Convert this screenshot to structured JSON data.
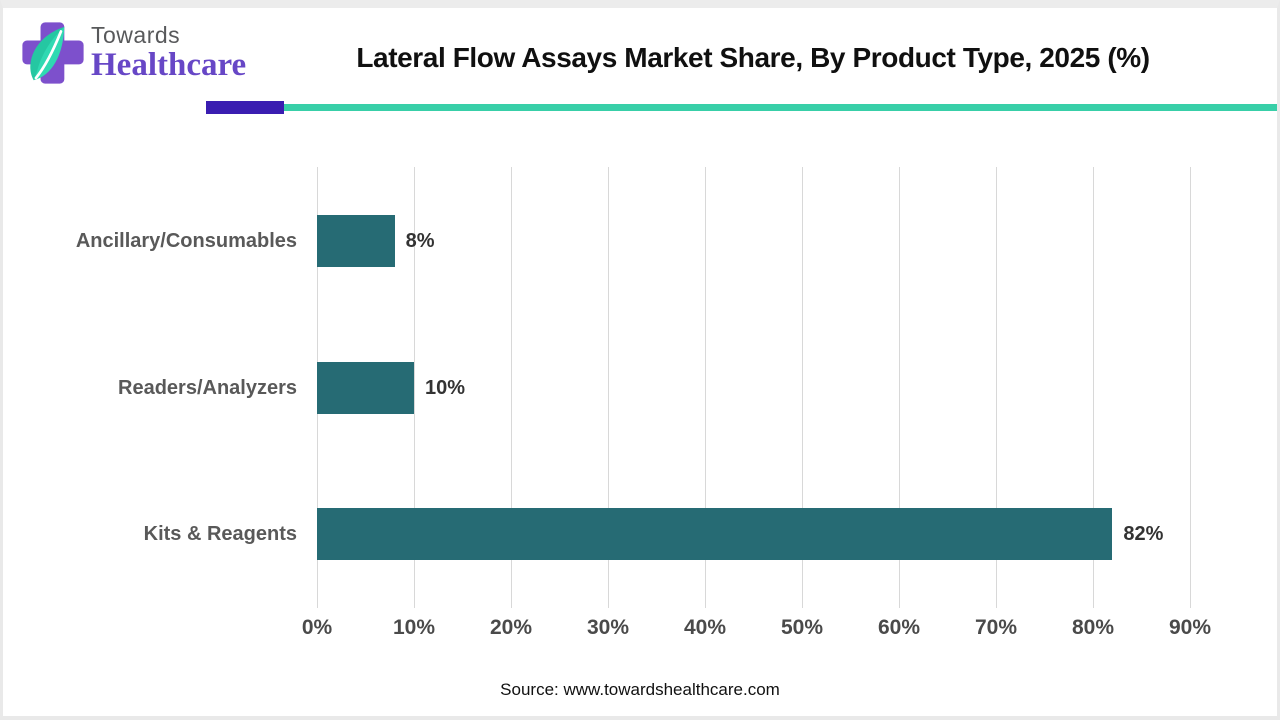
{
  "logo": {
    "line1": "Towards",
    "line2": "Healthcare",
    "cross_color": "#7d50cc",
    "leaf_color": "#2fd9b2",
    "leaf_dark_color": "#1db895"
  },
  "header": {
    "title": "Lateral Flow Assays Market Share, By Product Type, 2025 (%)",
    "accent_bar_color": "#3a1db1",
    "rule_color": "#38cfa8"
  },
  "chart_data": {
    "type": "bar",
    "orientation": "horizontal",
    "title": "Lateral Flow Assays Market Share, By Product Type, 2025 (%)",
    "categories": [
      "Ancillary/Consumables",
      "Readers/Analyzers",
      "Kits & Reagents"
    ],
    "values": [
      8,
      10,
      82
    ],
    "value_labels": [
      "8%",
      "10%",
      "82%"
    ],
    "xlabel": "",
    "ylabel": "",
    "xlim": [
      0,
      90
    ],
    "x_tick_labels": [
      "0%",
      "10%",
      "20%",
      "30%",
      "40%",
      "50%",
      "60%",
      "70%",
      "80%",
      "90%"
    ],
    "grid": true,
    "legend": false,
    "bar_color": "#266b74",
    "gridline_color": "#d8d8d8"
  },
  "footer": {
    "source_label": "Source: www.towardshealthcare.com"
  }
}
